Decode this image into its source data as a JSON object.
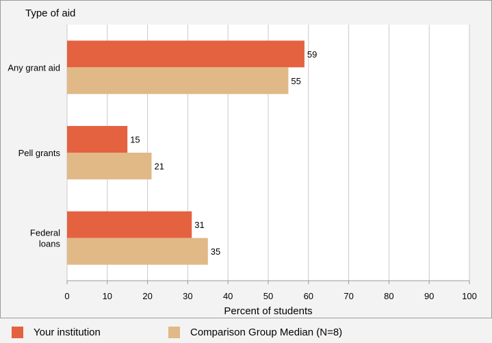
{
  "chart_data": {
    "type": "bar",
    "orientation": "horizontal",
    "y_axis_title": "Type of aid",
    "xlabel": "Percent of students",
    "xlim": [
      0,
      100
    ],
    "xticks": [
      0,
      10,
      20,
      30,
      40,
      50,
      60,
      70,
      80,
      90,
      100
    ],
    "categories": [
      [
        "Any grant aid"
      ],
      [
        "Pell grants"
      ],
      [
        "Federal",
        "loans"
      ]
    ],
    "series": [
      {
        "name": "Your institution",
        "color": "#e46240",
        "values": [
          59,
          15,
          31
        ]
      },
      {
        "name": "Comparison Group Median (N=8)",
        "color": "#e0b987",
        "values": [
          55,
          21,
          35
        ]
      }
    ],
    "grid": true,
    "legend_position": "bottom",
    "plot_background": "#ffffff",
    "page_background": "#f3f3f3"
  }
}
